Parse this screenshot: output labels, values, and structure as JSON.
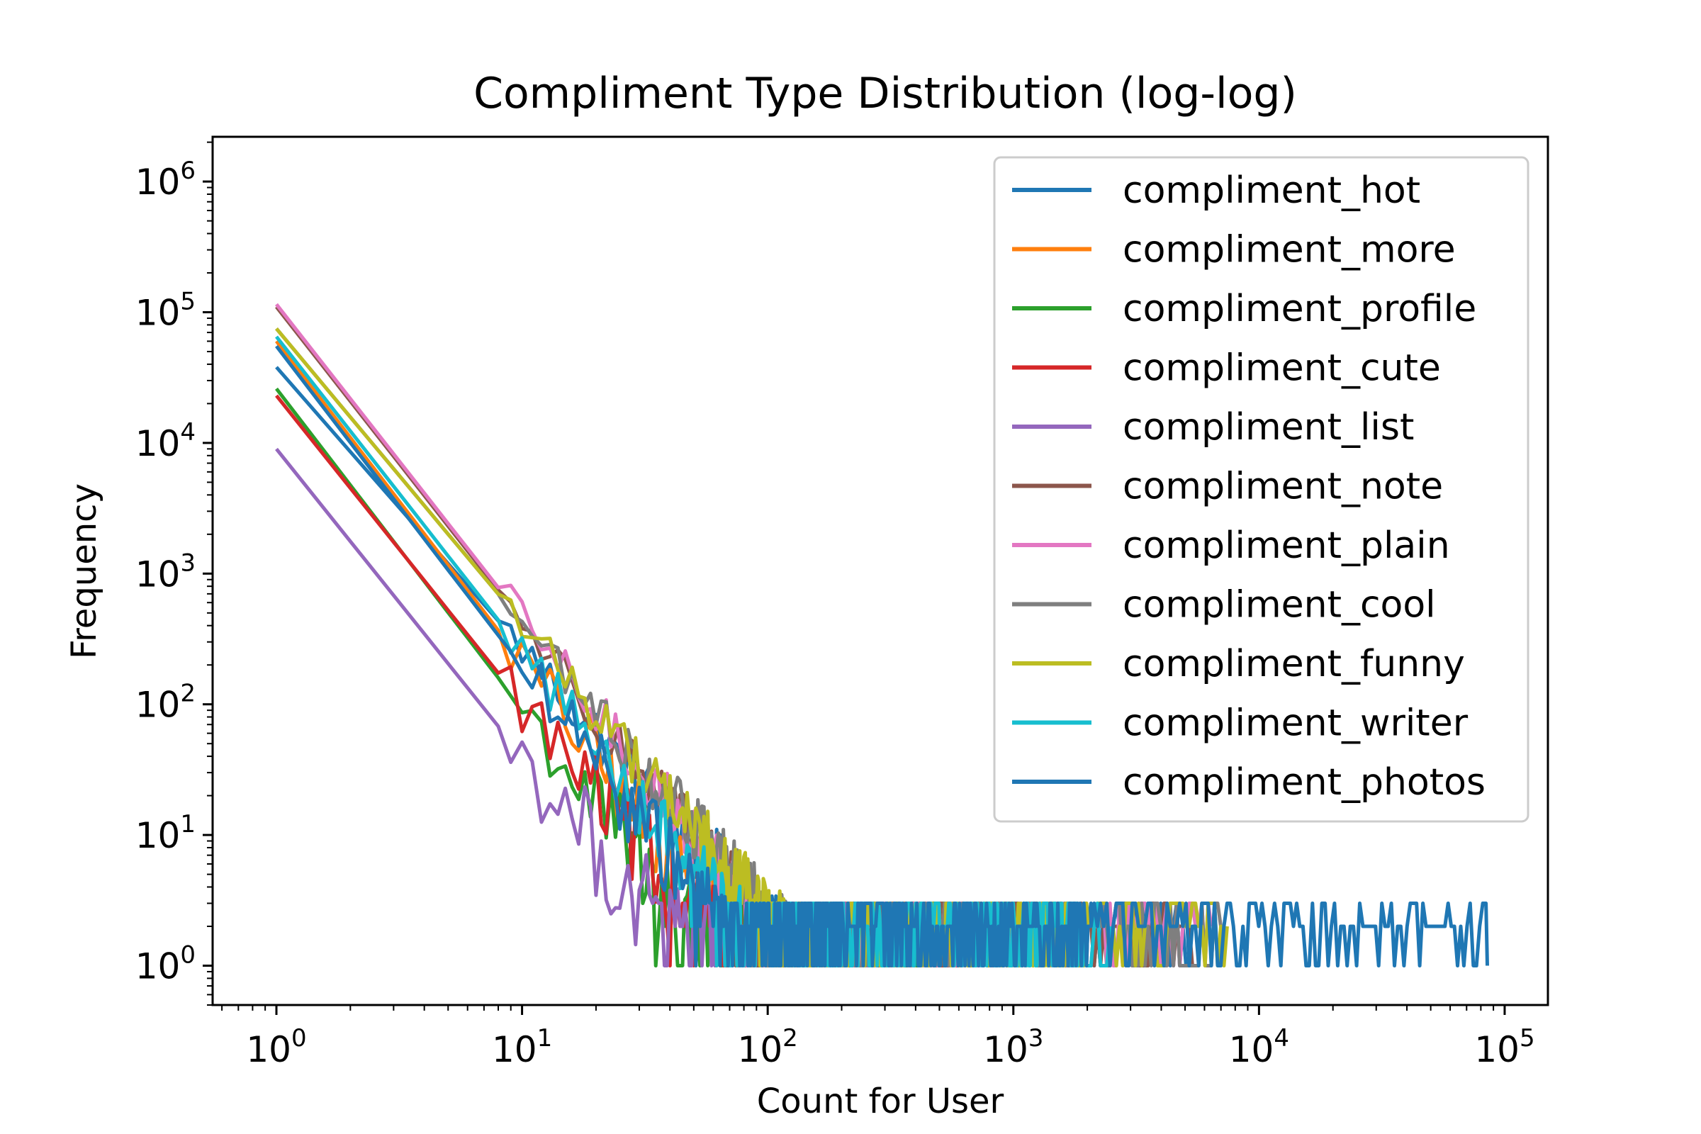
{
  "chart_data": {
    "type": "line",
    "title": "Compliment Type Distribution (log-log)",
    "xlabel": "Count for User",
    "ylabel": "Frequency",
    "xscale": "log",
    "yscale": "log",
    "xlim": [
      0.55,
      150000
    ],
    "ylim": [
      0.5,
      2200000
    ],
    "grid": false,
    "legend_position": "top-right",
    "x_ticks": [
      {
        "base": "10",
        "exp": "0",
        "value": 1
      },
      {
        "base": "10",
        "exp": "1",
        "value": 10
      },
      {
        "base": "10",
        "exp": "2",
        "value": 100
      },
      {
        "base": "10",
        "exp": "3",
        "value": 1000
      },
      {
        "base": "10",
        "exp": "4",
        "value": 10000
      },
      {
        "base": "10",
        "exp": "5",
        "value": 100000
      }
    ],
    "y_ticks": [
      {
        "base": "10",
        "exp": "0",
        "value": 1
      },
      {
        "base": "10",
        "exp": "1",
        "value": 10
      },
      {
        "base": "10",
        "exp": "2",
        "value": 100
      },
      {
        "base": "10",
        "exp": "3",
        "value": 1000
      },
      {
        "base": "10",
        "exp": "4",
        "value": 10000
      },
      {
        "base": "10",
        "exp": "5",
        "value": 100000
      },
      {
        "base": "10",
        "exp": "6",
        "value": 1000000
      }
    ],
    "series": [
      {
        "name": "compliment_hot",
        "color": "#1f77b4",
        "start": 38000,
        "slope": 2.15,
        "end": 5200,
        "noise": 0.18
      },
      {
        "name": "compliment_more",
        "color": "#ff7f0e",
        "start": 60000,
        "slope": 2.45,
        "end": 1000,
        "noise": 0.22
      },
      {
        "name": "compliment_profile",
        "color": "#2ca02c",
        "start": 26000,
        "slope": 2.45,
        "end": 600,
        "noise": 0.25
      },
      {
        "name": "compliment_cute",
        "color": "#d62728",
        "start": 23000,
        "slope": 2.35,
        "end": 700,
        "noise": 0.25
      },
      {
        "name": "compliment_list",
        "color": "#9467bd",
        "start": 9000,
        "slope": 2.35,
        "end": 300,
        "noise": 0.3
      },
      {
        "name": "compliment_note",
        "color": "#8c564b",
        "start": 110000,
        "slope": 2.4,
        "end": 5500,
        "noise": 0.15
      },
      {
        "name": "compliment_plain",
        "color": "#e377c2",
        "start": 115000,
        "slope": 2.4,
        "end": 6500,
        "noise": 0.15
      },
      {
        "name": "compliment_cool",
        "color": "#7f7f7f",
        "start": 75000,
        "slope": 2.25,
        "end": 7200,
        "noise": 0.15
      },
      {
        "name": "compliment_funny",
        "color": "#bcbd22",
        "start": 75000,
        "slope": 2.25,
        "end": 7500,
        "noise": 0.15
      },
      {
        "name": "compliment_writer",
        "color": "#17becf",
        "start": 65000,
        "slope": 2.4,
        "end": 2500,
        "noise": 0.18
      },
      {
        "name": "compliment_photos",
        "color": "#1f77b4",
        "start": 55000,
        "slope": 2.45,
        "end": 85000,
        "noise": 0.2
      }
    ]
  }
}
